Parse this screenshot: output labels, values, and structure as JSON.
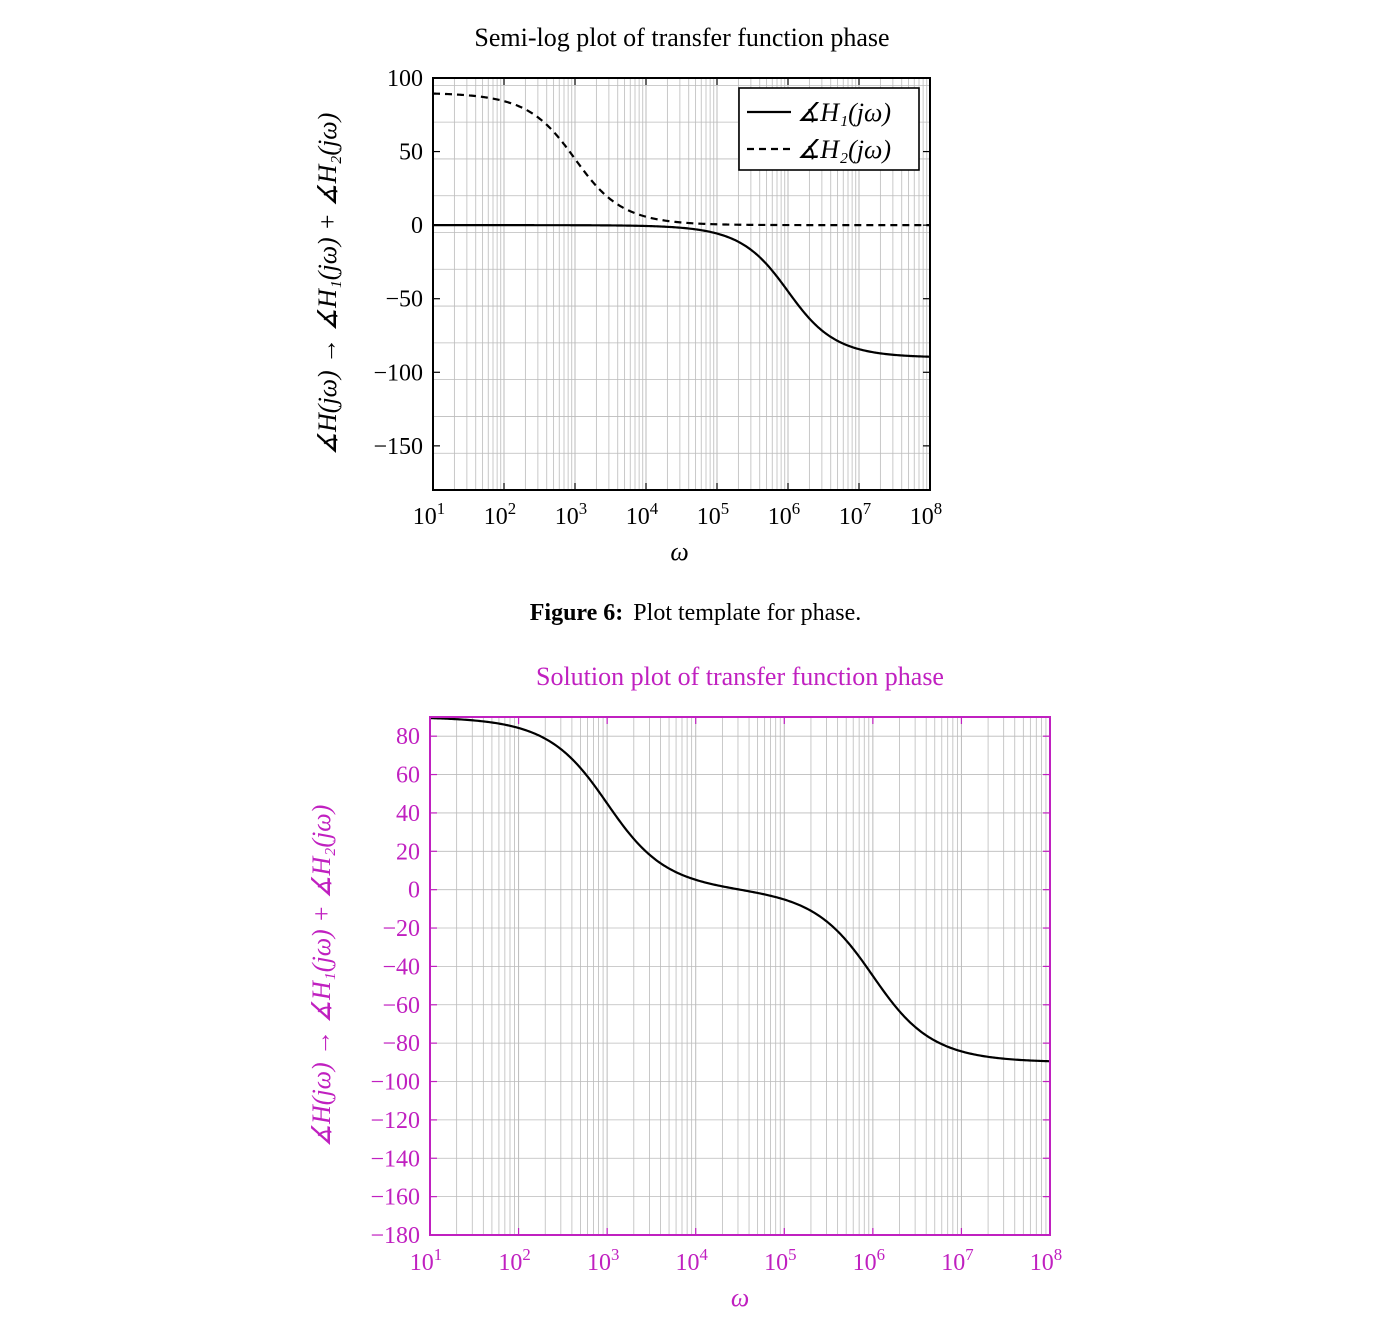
{
  "caption": {
    "label": "Figure 6:",
    "text": "Plot template for phase."
  },
  "colors": {
    "accent": "#c020c0",
    "axis": "#000000",
    "grid": "#bbbbbb",
    "curve": "#000000"
  },
  "chart_data": [
    {
      "type": "line",
      "title": "Semi-log plot of transfer function phase",
      "xlabel": "ω",
      "ylabel": "∡H(jω) → ∡H₁(jω) + ∡H₂(jω)",
      "xscale": "log",
      "xlim": [
        10,
        100000000
      ],
      "ylim": [
        -180,
        100
      ],
      "x_ticks": [
        "10¹",
        "10²",
        "10³",
        "10⁴",
        "10⁵",
        "10⁶",
        "10⁷",
        "10⁸"
      ],
      "y_ticks": [
        100,
        50,
        0,
        -50,
        -100,
        -150
      ],
      "grid": true,
      "legend_position": "top-right",
      "series": [
        {
          "name": "∡H₁(jω)",
          "style": "solid",
          "x": [
            10,
            100,
            1000,
            10000,
            100000,
            316228,
            1000000,
            3162278,
            10000000,
            100000000
          ],
          "y": [
            0,
            0,
            -0.1,
            -0.6,
            -5.7,
            -17.5,
            -45,
            -72.5,
            -84.3,
            -89.4
          ]
        },
        {
          "name": "∡H₂(jω)",
          "style": "dashed",
          "x": [
            10,
            100,
            316,
            1000,
            3162,
            10000,
            100000,
            1000000,
            100000000
          ],
          "y": [
            89.4,
            84.3,
            72.5,
            45,
            17.5,
            5.7,
            0.6,
            0.1,
            0
          ]
        }
      ]
    },
    {
      "type": "line",
      "title": "Solution plot of transfer function phase",
      "xlabel": "ω",
      "ylabel": "∡H(jω) → ∡H₁(jω) + ∡H₂(jω)",
      "xscale": "log",
      "xlim": [
        10,
        100000000
      ],
      "ylim": [
        -180,
        90
      ],
      "x_ticks": [
        "10¹",
        "10²",
        "10³",
        "10⁴",
        "10⁵",
        "10⁶",
        "10⁷",
        "10⁸"
      ],
      "y_ticks": [
        80,
        60,
        40,
        20,
        0,
        -20,
        -40,
        -60,
        -80,
        -100,
        -120,
        -140,
        -160,
        -180
      ],
      "grid": true,
      "series": [
        {
          "style": "solid",
          "x": [
            10,
            100,
            316,
            1000,
            3162,
            10000,
            31623,
            100000,
            316228,
            1000000,
            3162278,
            10000000,
            100000000
          ],
          "y": [
            89.4,
            84.3,
            72.5,
            45,
            17.5,
            5.1,
            1.7,
            -5.1,
            -17.5,
            -45,
            -72.5,
            -84.3,
            -89.4
          ]
        }
      ]
    }
  ]
}
